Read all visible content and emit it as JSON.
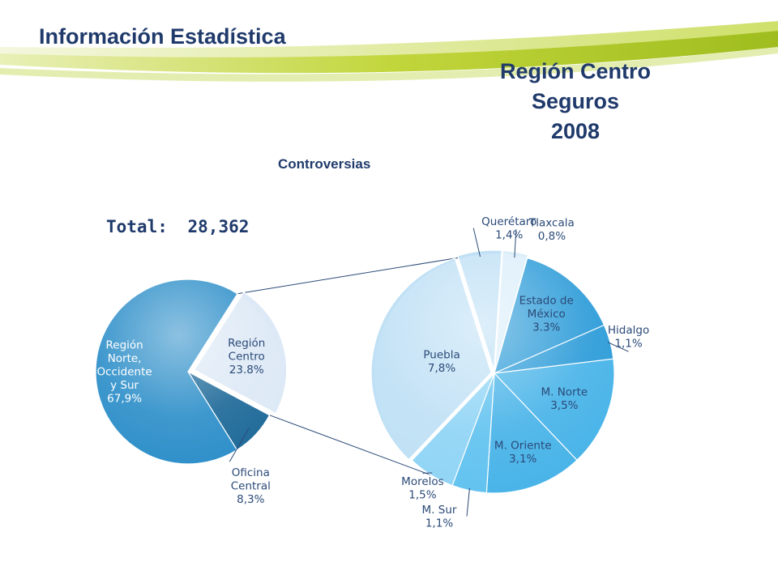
{
  "header": {
    "title": "Información Estadística"
  },
  "slide": {
    "title_lines": [
      "Región Centro",
      "Seguros",
      "2008"
    ],
    "subtitle": "Controversias",
    "total_label": "Total:",
    "total_value": "28,362"
  },
  "colors": {
    "title": "#1f3a6b",
    "label_dark": "#2b4a78",
    "label_light": "#ffffff",
    "header_band": "#b5cc2e",
    "pie_main": "#2e8fc9",
    "pie_centro": "#dde9f6",
    "pie_oficina": "#1f6a99",
    "pie_light": "#bfe0f5",
    "pie_mid": "#47b3e8",
    "pie_deep": "#2b9bd8"
  },
  "chart_data": [
    {
      "type": "pie",
      "title": "",
      "slices": [
        {
          "label": "Región Centro",
          "display": "Región Centro 23.8%",
          "value": 23.8,
          "label_lines": [
            "Región",
            "Centro",
            "23.8%"
          ]
        },
        {
          "label": "Oficina Central",
          "display": "Oficina Central 8,3%",
          "value": 8.3,
          "label_lines": [
            "Oficina",
            "Central",
            "8,3%"
          ]
        },
        {
          "label": "Región Norte, Occidente y Sur",
          "display": "Región Norte, Occidente y Sur 67,9%",
          "value": 67.9,
          "label_lines": [
            "Región",
            "Norte,",
            "Occidente",
            "y Sur",
            "67,9%"
          ]
        }
      ]
    },
    {
      "type": "pie",
      "title": "",
      "slices": [
        {
          "label": "Querétaro",
          "value": 1.4,
          "label_lines": [
            "Querétaro",
            "1,4%"
          ]
        },
        {
          "label": "Tlaxcala",
          "value": 0.8,
          "label_lines": [
            "Tlaxcala",
            "0,8%"
          ]
        },
        {
          "label": "Estado de México",
          "value": 3.3,
          "label_lines": [
            "Estado de",
            "México",
            "3.3%"
          ]
        },
        {
          "label": "Hidalgo",
          "value": 1.1,
          "label_lines": [
            "Hidalgo",
            "1,1%"
          ]
        },
        {
          "label": "M. Norte",
          "value": 3.5,
          "label_lines": [
            "M. Norte",
            "3,5%"
          ]
        },
        {
          "label": "M. Oriente",
          "value": 3.1,
          "label_lines": [
            "M. Oriente",
            "3,1%"
          ]
        },
        {
          "label": "M. Sur",
          "value": 1.1,
          "label_lines": [
            "M. Sur",
            "1,1%"
          ]
        },
        {
          "label": "Morelos",
          "value": 1.5,
          "label_lines": [
            "Morelos",
            "1,5%"
          ]
        },
        {
          "label": "Puebla",
          "value": 7.8,
          "label_lines": [
            "Puebla",
            "7,8%"
          ]
        }
      ]
    }
  ]
}
